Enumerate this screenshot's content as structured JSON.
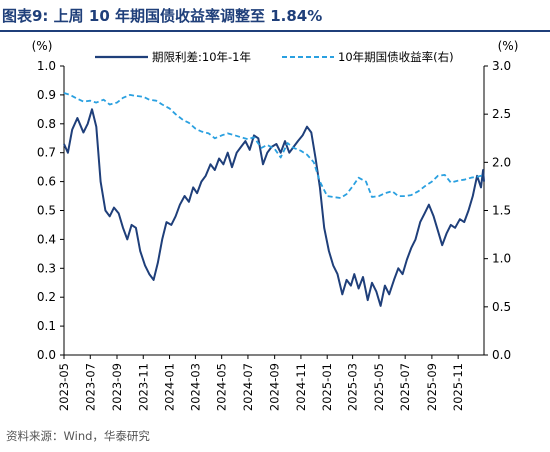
{
  "title": {
    "text": "图表9:  上周 10 年期国债收益率调整至 1.84%"
  },
  "source": "资料来源：Wind，华泰研究",
  "colors": {
    "title": "#1f3f7a",
    "series_dark": "#1f3f7a",
    "series_light": "#2aa0e0"
  },
  "chart_data": {
    "type": "line",
    "title": "上周 10 年期国债收益率调整至 1.84%",
    "x_tick_labels": [
      "2023-05",
      "2023-07",
      "2023-09",
      "2023-11",
      "2024-01",
      "2024-03",
      "2024-05",
      "2024-07",
      "2024-09",
      "2024-11",
      "2025-01",
      "2025-03",
      "2025-05",
      "2025-07",
      "2025-09",
      "2025-11"
    ],
    "xlim": [
      "2023-05",
      "2025-12-31"
    ],
    "y_left": {
      "unit": "(%)",
      "lim": [
        0.0,
        1.0
      ],
      "ticks": [
        "0.0",
        "0.1",
        "0.2",
        "0.3",
        "0.4",
        "0.5",
        "0.6",
        "0.7",
        "0.8",
        "0.9",
        "1.0"
      ]
    },
    "y_right": {
      "unit": "(%)",
      "lim": [
        0.0,
        3.0
      ],
      "ticks": [
        "0.0",
        "0.5",
        "1.0",
        "1.5",
        "2.0",
        "2.5",
        "3.0"
      ]
    },
    "grid": false,
    "legend_position": "top",
    "series": [
      {
        "name": "期限利差:10年-1年",
        "axis": "left",
        "style": "solid",
        "color": "#1f3f7a",
        "points": [
          [
            "2023-05-01",
            0.73
          ],
          [
            "2023-05-10",
            0.7
          ],
          [
            "2023-05-20",
            0.78
          ],
          [
            "2023-06-01",
            0.82
          ],
          [
            "2023-06-15",
            0.77
          ],
          [
            "2023-06-25",
            0.8
          ],
          [
            "2023-07-05",
            0.85
          ],
          [
            "2023-07-15",
            0.79
          ],
          [
            "2023-07-25",
            0.6
          ],
          [
            "2023-08-05",
            0.5
          ],
          [
            "2023-08-15",
            0.48
          ],
          [
            "2023-08-25",
            0.51
          ],
          [
            "2023-09-05",
            0.49
          ],
          [
            "2023-09-15",
            0.44
          ],
          [
            "2023-09-25",
            0.4
          ],
          [
            "2023-10-05",
            0.45
          ],
          [
            "2023-10-15",
            0.44
          ],
          [
            "2023-10-25",
            0.36
          ],
          [
            "2023-11-05",
            0.31
          ],
          [
            "2023-11-15",
            0.28
          ],
          [
            "2023-11-25",
            0.26
          ],
          [
            "2023-12-05",
            0.32
          ],
          [
            "2023-12-15",
            0.4
          ],
          [
            "2023-12-25",
            0.46
          ],
          [
            "2024-01-05",
            0.45
          ],
          [
            "2024-01-15",
            0.48
          ],
          [
            "2024-01-25",
            0.52
          ],
          [
            "2024-02-05",
            0.55
          ],
          [
            "2024-02-15",
            0.53
          ],
          [
            "2024-02-25",
            0.58
          ],
          [
            "2024-03-05",
            0.56
          ],
          [
            "2024-03-15",
            0.6
          ],
          [
            "2024-03-25",
            0.62
          ],
          [
            "2024-04-05",
            0.66
          ],
          [
            "2024-04-15",
            0.64
          ],
          [
            "2024-04-25",
            0.68
          ],
          [
            "2024-05-05",
            0.66
          ],
          [
            "2024-05-15",
            0.7
          ],
          [
            "2024-05-25",
            0.65
          ],
          [
            "2024-06-05",
            0.7
          ],
          [
            "2024-06-15",
            0.72
          ],
          [
            "2024-06-25",
            0.74
          ],
          [
            "2024-07-05",
            0.71
          ],
          [
            "2024-07-15",
            0.76
          ],
          [
            "2024-07-25",
            0.75
          ],
          [
            "2024-08-05",
            0.66
          ],
          [
            "2024-08-15",
            0.7
          ],
          [
            "2024-08-25",
            0.72
          ],
          [
            "2024-09-05",
            0.73
          ],
          [
            "2024-09-15",
            0.7
          ],
          [
            "2024-09-25",
            0.74
          ],
          [
            "2024-10-05",
            0.7
          ],
          [
            "2024-10-15",
            0.72
          ],
          [
            "2024-10-25",
            0.74
          ],
          [
            "2024-11-05",
            0.76
          ],
          [
            "2024-11-15",
            0.79
          ],
          [
            "2024-11-25",
            0.77
          ],
          [
            "2024-12-05",
            0.68
          ],
          [
            "2024-12-15",
            0.58
          ],
          [
            "2024-12-25",
            0.44
          ],
          [
            "2025-01-05",
            0.36
          ],
          [
            "2025-01-15",
            0.31
          ],
          [
            "2025-01-25",
            0.28
          ],
          [
            "2025-02-05",
            0.21
          ],
          [
            "2025-02-15",
            0.26
          ],
          [
            "2025-02-25",
            0.24
          ],
          [
            "2025-03-05",
            0.28
          ],
          [
            "2025-03-15",
            0.23
          ],
          [
            "2025-03-25",
            0.27
          ],
          [
            "2025-04-05",
            0.19
          ],
          [
            "2025-04-15",
            0.25
          ],
          [
            "2025-04-25",
            0.22
          ],
          [
            "2025-05-05",
            0.17
          ],
          [
            "2025-05-15",
            0.24
          ],
          [
            "2025-05-25",
            0.21
          ],
          [
            "2025-06-05",
            0.26
          ],
          [
            "2025-06-15",
            0.3
          ],
          [
            "2025-06-25",
            0.28
          ],
          [
            "2025-07-05",
            0.33
          ],
          [
            "2025-07-15",
            0.37
          ],
          [
            "2025-07-25",
            0.4
          ],
          [
            "2025-08-05",
            0.46
          ],
          [
            "2025-08-15",
            0.49
          ],
          [
            "2025-08-25",
            0.52
          ],
          [
            "2025-09-05",
            0.48
          ],
          [
            "2025-09-15",
            0.43
          ],
          [
            "2025-09-25",
            0.38
          ],
          [
            "2025-10-05",
            0.42
          ],
          [
            "2025-10-15",
            0.45
          ],
          [
            "2025-10-25",
            0.44
          ],
          [
            "2025-11-05",
            0.47
          ],
          [
            "2025-11-15",
            0.46
          ],
          [
            "2025-11-25",
            0.5
          ],
          [
            "2025-12-05",
            0.55
          ],
          [
            "2025-12-15",
            0.62
          ],
          [
            "2025-12-24",
            0.58
          ],
          [
            "2025-12-29",
            0.64
          ],
          [
            "2025-12-31",
            0.6
          ]
        ]
      },
      {
        "name": "10年期国债收益率(右)",
        "axis": "right",
        "style": "dashed",
        "color": "#2aa0e0",
        "points": [
          [
            "2023-05-01",
            2.72
          ],
          [
            "2023-05-15",
            2.7
          ],
          [
            "2023-06-01",
            2.66
          ],
          [
            "2023-06-15",
            2.63
          ],
          [
            "2023-07-01",
            2.64
          ],
          [
            "2023-07-15",
            2.62
          ],
          [
            "2023-08-01",
            2.65
          ],
          [
            "2023-08-15",
            2.6
          ],
          [
            "2023-09-01",
            2.62
          ],
          [
            "2023-09-15",
            2.67
          ],
          [
            "2023-10-01",
            2.7
          ],
          [
            "2023-10-15",
            2.69
          ],
          [
            "2023-11-01",
            2.68
          ],
          [
            "2023-11-15",
            2.65
          ],
          [
            "2023-12-01",
            2.64
          ],
          [
            "2023-12-15",
            2.6
          ],
          [
            "2024-01-01",
            2.56
          ],
          [
            "2024-01-15",
            2.5
          ],
          [
            "2024-02-01",
            2.44
          ],
          [
            "2024-02-15",
            2.41
          ],
          [
            "2024-03-01",
            2.35
          ],
          [
            "2024-03-15",
            2.32
          ],
          [
            "2024-04-01",
            2.3
          ],
          [
            "2024-04-15",
            2.25
          ],
          [
            "2024-05-01",
            2.28
          ],
          [
            "2024-05-15",
            2.3
          ],
          [
            "2024-06-01",
            2.28
          ],
          [
            "2024-06-15",
            2.26
          ],
          [
            "2024-07-01",
            2.24
          ],
          [
            "2024-07-15",
            2.26
          ],
          [
            "2024-08-01",
            2.15
          ],
          [
            "2024-08-15",
            2.18
          ],
          [
            "2024-09-01",
            2.14
          ],
          [
            "2024-09-15",
            2.05
          ],
          [
            "2024-10-01",
            2.2
          ],
          [
            "2024-10-15",
            2.15
          ],
          [
            "2024-11-01",
            2.12
          ],
          [
            "2024-11-15",
            2.08
          ],
          [
            "2024-12-01",
            2.0
          ],
          [
            "2024-12-15",
            1.8
          ],
          [
            "2025-01-01",
            1.65
          ],
          [
            "2025-01-15",
            1.64
          ],
          [
            "2025-02-01",
            1.63
          ],
          [
            "2025-02-15",
            1.67
          ],
          [
            "2025-03-01",
            1.75
          ],
          [
            "2025-03-15",
            1.84
          ],
          [
            "2025-04-01",
            1.8
          ],
          [
            "2025-04-15",
            1.64
          ],
          [
            "2025-05-01",
            1.65
          ],
          [
            "2025-05-15",
            1.68
          ],
          [
            "2025-06-01",
            1.7
          ],
          [
            "2025-06-15",
            1.65
          ],
          [
            "2025-07-01",
            1.65
          ],
          [
            "2025-07-15",
            1.66
          ],
          [
            "2025-08-01",
            1.7
          ],
          [
            "2025-08-15",
            1.75
          ],
          [
            "2025-09-01",
            1.8
          ],
          [
            "2025-09-15",
            1.86
          ],
          [
            "2025-10-01",
            1.87
          ],
          [
            "2025-10-15",
            1.79
          ],
          [
            "2025-11-01",
            1.81
          ],
          [
            "2025-11-15",
            1.82
          ],
          [
            "2025-12-01",
            1.84
          ],
          [
            "2025-12-15",
            1.85
          ],
          [
            "2025-12-25",
            1.86
          ],
          [
            "2025-12-31",
            1.84
          ]
        ]
      }
    ]
  }
}
